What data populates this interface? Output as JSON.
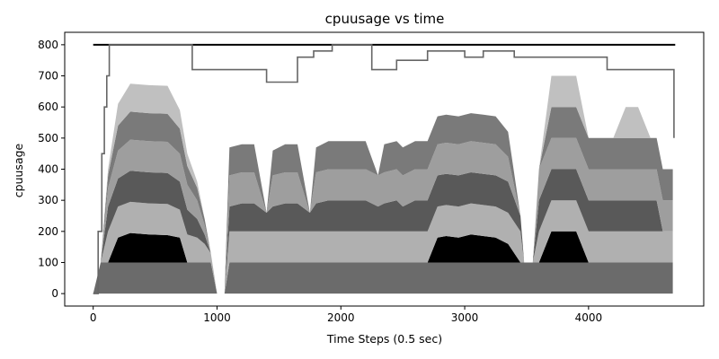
{
  "chart_data": {
    "type": "area",
    "title": "cpuusage vs time",
    "xlabel": "Time Steps (0.5 sec)",
    "ylabel": "cpuusage",
    "xlim": [
      -230,
      4930
    ],
    "ylim": [
      -40,
      840
    ],
    "xticks": [
      0,
      1000,
      2000,
      3000,
      4000
    ],
    "yticks": [
      0,
      100,
      200,
      300,
      400,
      500,
      600,
      700,
      800
    ],
    "grid": false,
    "legend": "none",
    "colors": [
      "#6b6b6b",
      "#000000",
      "#b0b0b0",
      "#595959",
      "#9e9e9e",
      "#7a7a7a",
      "#c0c0c0"
    ],
    "stack_x": [
      0,
      60,
      120,
      200,
      300,
      450,
      600,
      700,
      760,
      840,
      900,
      950,
      1000,
      1060,
      1100,
      1200,
      1300,
      1400,
      1450,
      1550,
      1650,
      1750,
      1800,
      1900,
      1950,
      2050,
      2200,
      2300,
      2350,
      2450,
      2500,
      2600,
      2700,
      2780,
      2850,
      2950,
      3050,
      3150,
      3250,
      3350,
      3450,
      3480,
      3550,
      3600,
      3700,
      3800,
      3900,
      4000,
      4100,
      4200,
      4300,
      4400,
      4500,
      4550,
      4600,
      4680
    ],
    "stack_series": [
      {
        "values": [
          0,
          100,
          100,
          100,
          100,
          100,
          100,
          100,
          100,
          100,
          100,
          100,
          0,
          0,
          100,
          100,
          100,
          100,
          100,
          100,
          100,
          100,
          100,
          100,
          100,
          100,
          100,
          100,
          100,
          100,
          100,
          100,
          100,
          100,
          100,
          100,
          100,
          100,
          100,
          100,
          100,
          100,
          100,
          100,
          100,
          100,
          100,
          100,
          100,
          100,
          100,
          100,
          100,
          100,
          100,
          100
        ]
      },
      {
        "values": [
          0,
          0,
          0,
          80,
          95,
          90,
          88,
          80,
          0,
          0,
          0,
          0,
          0,
          0,
          0,
          0,
          0,
          0,
          0,
          0,
          0,
          0,
          0,
          0,
          0,
          0,
          0,
          0,
          0,
          0,
          0,
          0,
          0,
          80,
          85,
          80,
          90,
          85,
          80,
          60,
          0,
          0,
          0,
          0,
          100,
          100,
          100,
          0,
          0,
          0,
          0,
          0,
          0,
          0,
          0,
          0
        ]
      },
      {
        "values": [
          0,
          0,
          100,
          100,
          100,
          100,
          100,
          90,
          90,
          80,
          60,
          30,
          0,
          0,
          100,
          100,
          100,
          100,
          100,
          100,
          100,
          100,
          100,
          100,
          100,
          100,
          100,
          100,
          100,
          100,
          100,
          100,
          100,
          100,
          100,
          100,
          100,
          100,
          100,
          100,
          100,
          0,
          0,
          100,
          100,
          100,
          100,
          100,
          100,
          100,
          100,
          100,
          100,
          100,
          100,
          100
        ]
      },
      {
        "values": [
          0,
          0,
          80,
          90,
          100,
          100,
          100,
          90,
          80,
          60,
          30,
          0,
          0,
          0,
          80,
          90,
          90,
          60,
          80,
          90,
          90,
          60,
          90,
          100,
          100,
          100,
          100,
          80,
          90,
          100,
          80,
          100,
          100,
          100,
          100,
          100,
          100,
          100,
          100,
          100,
          50,
          0,
          0,
          100,
          100,
          100,
          100,
          100,
          100,
          100,
          100,
          100,
          100,
          100,
          0,
          0
        ]
      },
      {
        "values": [
          0,
          0,
          60,
          90,
          100,
          100,
          100,
          90,
          80,
          60,
          30,
          0,
          0,
          0,
          100,
          100,
          100,
          0,
          100,
          100,
          100,
          0,
          100,
          100,
          100,
          100,
          100,
          100,
          100,
          100,
          100,
          100,
          100,
          100,
          100,
          100,
          100,
          100,
          100,
          80,
          0,
          0,
          0,
          100,
          100,
          100,
          100,
          100,
          100,
          100,
          100,
          100,
          100,
          100,
          100,
          100
        ]
      },
      {
        "values": [
          0,
          0,
          40,
          80,
          90,
          90,
          90,
          80,
          60,
          40,
          20,
          0,
          0,
          0,
          90,
          90,
          90,
          0,
          80,
          90,
          90,
          0,
          80,
          90,
          90,
          90,
          90,
          0,
          90,
          90,
          90,
          90,
          90,
          90,
          90,
          90,
          90,
          90,
          90,
          80,
          0,
          0,
          0,
          0,
          100,
          100,
          100,
          100,
          100,
          100,
          100,
          100,
          100,
          100,
          100,
          100
        ]
      },
      {
        "values": [
          0,
          0,
          20,
          70,
          90,
          90,
          90,
          60,
          40,
          20,
          0,
          0,
          0,
          0,
          0,
          0,
          0,
          0,
          0,
          0,
          0,
          0,
          0,
          0,
          0,
          0,
          0,
          0,
          0,
          0,
          0,
          0,
          0,
          0,
          0,
          0,
          0,
          0,
          0,
          0,
          0,
          0,
          0,
          0,
          100,
          100,
          100,
          0,
          0,
          0,
          100,
          100,
          0,
          0,
          0,
          0
        ]
      }
    ],
    "line_series": [
      {
        "color": "#000000",
        "x": [
          0,
          4700
        ],
        "values": [
          800,
          800
        ]
      },
      {
        "color": "#666666",
        "x": [
          0,
          40,
          40,
          70,
          70,
          90,
          90,
          110,
          110,
          130,
          130,
          800,
          800,
          950,
          950,
          1400,
          1400,
          1650,
          1650,
          1780,
          1780,
          1930,
          1930,
          2250,
          2250,
          2450,
          2450,
          2700,
          2700,
          3000,
          3000,
          3150,
          3150,
          3400,
          3400,
          3700,
          3700,
          4150,
          4150,
          4400,
          4400,
          4690,
          4690
        ],
        "values": [
          0,
          0,
          200,
          200,
          450,
          450,
          600,
          600,
          700,
          700,
          800,
          800,
          720,
          720,
          720,
          720,
          680,
          680,
          760,
          760,
          780,
          780,
          800,
          800,
          720,
          720,
          750,
          750,
          780,
          780,
          760,
          760,
          780,
          780,
          760,
          760,
          760,
          760,
          720,
          720,
          720,
          720,
          500
        ]
      }
    ]
  }
}
